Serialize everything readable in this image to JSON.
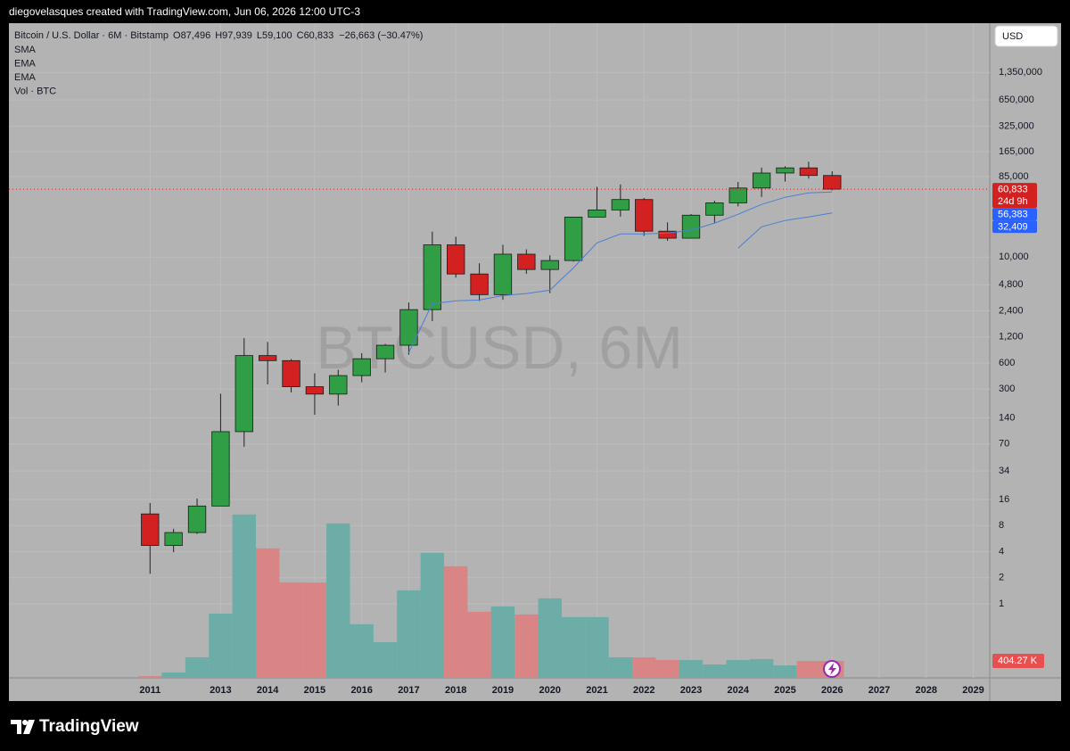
{
  "header": {
    "attribution": "diegovelasques created with TradingView.com, Jun 06, 2026 12:00 UTC-3"
  },
  "chart_data": {
    "type": "candlestick",
    "title": "Bitcoin / U.S. Dollar · 6M · Bitstamp",
    "ohlc_legend": [
      {
        "label": "O",
        "value": "87,496"
      },
      {
        "label": "H",
        "value": "97,939"
      },
      {
        "label": "L",
        "value": "59,100"
      },
      {
        "label": "C",
        "value": "60,833"
      }
    ],
    "change": "−26,663 (−30.47%)",
    "indicators": [
      "SMA",
      "EMA",
      "EMA",
      "Vol · BTC"
    ],
    "watermark": "BTCUSD, 6M",
    "currency": "USD",
    "x": [
      2011.5,
      2012,
      2012.5,
      2013,
      2013.5,
      2014,
      2014.5,
      2015,
      2015.5,
      2016,
      2016.5,
      2017,
      2017.5,
      2018,
      2018.5,
      2019,
      2019.5,
      2020,
      2020.5,
      2021,
      2021.5,
      2022,
      2022.5,
      2023,
      2023.5,
      2024,
      2024.5,
      2025,
      2025.5,
      2026
    ],
    "open": [
      10.9,
      4.72,
      6.65,
      13.45,
      97,
      732,
      640,
      320,
      263,
      430,
      673,
      963,
      2480,
      13860,
      6390,
      3690,
      10817,
      7200,
      9135,
      28980,
      35040,
      46200,
      19920,
      16540,
      30470,
      42270,
      62700,
      93400,
      107100,
      87496
    ],
    "high": [
      14.6,
      7.35,
      16.4,
      266,
      1163,
      1050,
      665,
      457,
      502,
      780,
      1000,
      3000,
      19666,
      17200,
      8490,
      13880,
      12300,
      10500,
      29000,
      64900,
      69000,
      48200,
      25200,
      31400,
      44700,
      73800,
      108000,
      111900,
      126200,
      97939
    ],
    "low": [
      2.22,
      3.95,
      6.4,
      13.4,
      65,
      340,
      275,
      152,
      194,
      360,
      467,
      750,
      1830,
      5800,
      3120,
      3220,
      6430,
      3850,
      8900,
      28800,
      29300,
      17600,
      15460,
      16500,
      24900,
      38500,
      49500,
      74400,
      80600,
      59100
    ],
    "close": [
      4.72,
      6.65,
      13.45,
      97,
      732,
      640,
      320,
      263,
      430,
      673,
      963,
      2480,
      13860,
      6390,
      3690,
      10817,
      7200,
      9135,
      28980,
      35040,
      46200,
      19920,
      16540,
      30470,
      42270,
      62700,
      93400,
      107100,
      87496,
      60833
    ],
    "up_color": "#2f9e44",
    "down_color": "#d32020",
    "lines": [
      {
        "color": "#4c7ed6",
        "values": [
          null,
          null,
          null,
          null,
          null,
          null,
          null,
          null,
          null,
          null,
          null,
          790,
          2900,
          3130,
          3200,
          3600,
          3800,
          4150,
          7500,
          14600,
          18500,
          18500,
          19000,
          20400,
          24700,
          31200,
          40600,
          49000,
          55200,
          56383
        ]
      },
      {
        "color": "#4c7ed6",
        "values": [
          null,
          null,
          null,
          null,
          null,
          null,
          null,
          null,
          null,
          null,
          null,
          null,
          null,
          null,
          null,
          null,
          null,
          null,
          null,
          null,
          null,
          null,
          null,
          null,
          null,
          12700,
          22400,
          26500,
          29100,
          32409
        ]
      }
    ],
    "volume": {
      "values": [
        43000,
        128000,
        490000,
        1532000,
        3894000,
        3086000,
        2277000,
        2270000,
        3681000,
        1277000,
        851000,
        2085000,
        2979000,
        2660000,
        1575000,
        1702000,
        1511000,
        1894000,
        1447000,
        1447000,
        489000,
        489000,
        426000,
        426000,
        319000,
        426000,
        447000,
        298000,
        404000,
        404270
      ],
      "up_color": "#6cada7",
      "down_color": "#d98585",
      "ylim": [
        0,
        15600000
      ],
      "last_label": {
        "value": 404270,
        "label": "404.27 K"
      }
    },
    "last_price": {
      "value": 60833,
      "label": "60,833",
      "countdown": "24d 9h"
    },
    "line_labels": [
      {
        "value": 56383,
        "label": "56,383"
      },
      {
        "value": 32409,
        "label": "32,409"
      }
    ],
    "line_label_color": "#2962ff",
    "xlim": [
      2008.5,
      2029.35
    ],
    "xticks": [
      {
        "value": 2011.5,
        "label": "2011"
      },
      2013,
      2014,
      2015,
      2016,
      2017,
      2018,
      2019,
      2020,
      2021,
      2022,
      2023,
      2024,
      2025,
      2026,
      2027,
      2028,
      2029
    ],
    "ylim": [
      0.14,
      5000000
    ],
    "log_scale": true,
    "yticks": [
      1,
      2,
      4,
      8,
      16,
      34,
      70,
      140,
      300,
      600,
      {
        "value": 1200,
        "label": "1,200"
      },
      {
        "value": 2400,
        "label": "2,400"
      },
      {
        "value": 4800,
        "label": "4,800"
      },
      {
        "value": 10000,
        "label": "10,000"
      },
      {
        "value": 85000,
        "label": "85,000"
      },
      {
        "value": 165000,
        "label": "165,000"
      },
      {
        "value": 325000,
        "label": "325,000"
      },
      {
        "value": 650000,
        "label": "650,000"
      },
      {
        "value": 1350000,
        "label": "1,350,000"
      }
    ],
    "grid": true
  },
  "footer": {
    "brand": "TradingView"
  }
}
